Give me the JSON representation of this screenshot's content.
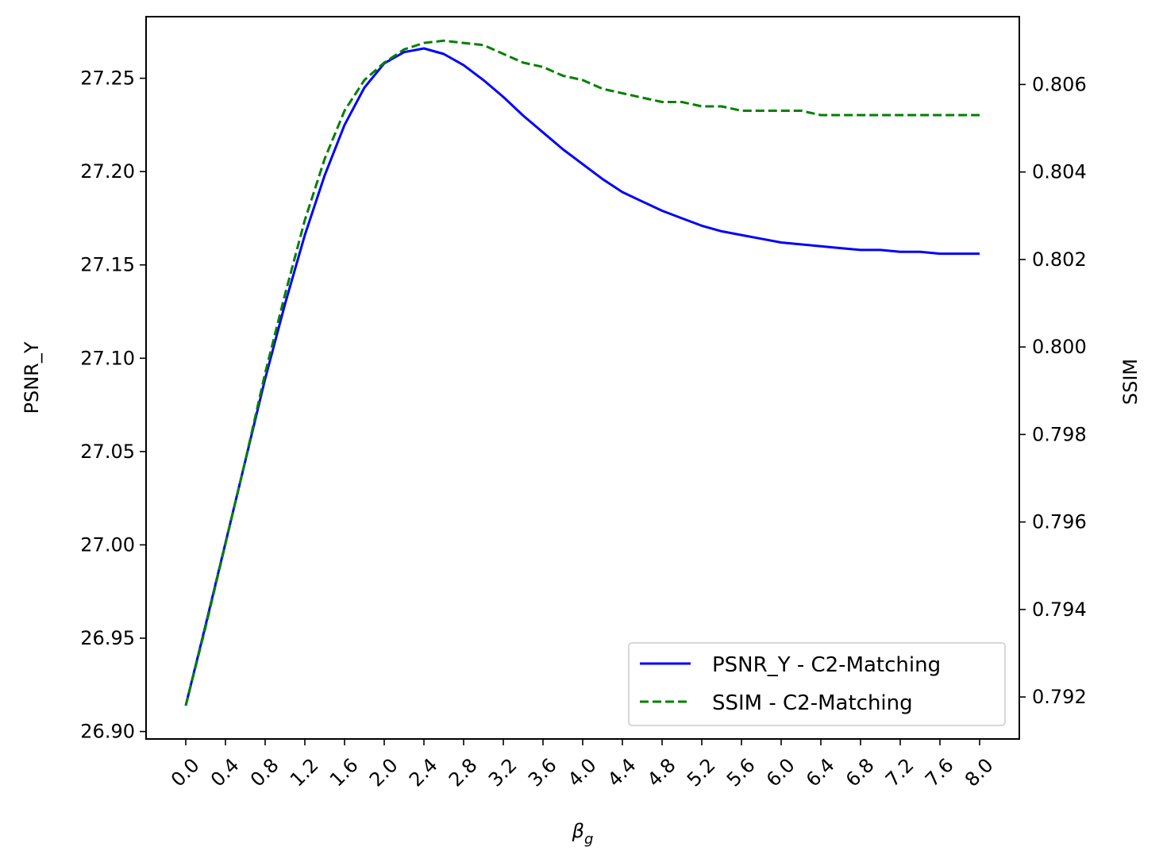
{
  "chart_data": {
    "type": "line",
    "xlabel": "β",
    "xlabel_subscript": "g",
    "ylabel": "PSNR_Y",
    "y2label": "SSIM",
    "xlim": [
      -0.4,
      8.4
    ],
    "ylim": [
      26.896,
      27.283
    ],
    "y2lim": [
      0.79104,
      0.80755
    ],
    "x_ticks": [
      0.0,
      0.4,
      0.8,
      1.2,
      1.6,
      2.0,
      2.4,
      2.8,
      3.2,
      3.6,
      4.0,
      4.4,
      4.8,
      5.2,
      5.6,
      6.0,
      6.4,
      6.8,
      7.2,
      7.6,
      8.0
    ],
    "x_tick_labels": [
      "0.0",
      "0.4",
      "0.8",
      "1.2",
      "1.6",
      "2.0",
      "2.4",
      "2.8",
      "3.2",
      "3.6",
      "4.0",
      "4.4",
      "4.8",
      "5.2",
      "5.6",
      "6.0",
      "6.4",
      "6.8",
      "7.2",
      "7.6",
      "8.0"
    ],
    "y_ticks": [
      26.9,
      26.95,
      27.0,
      27.05,
      27.1,
      27.15,
      27.2,
      27.25
    ],
    "y_tick_labels": [
      "26.90",
      "26.95",
      "27.00",
      "27.05",
      "27.10",
      "27.15",
      "27.20",
      "27.25"
    ],
    "y2_ticks": [
      0.792,
      0.794,
      0.796,
      0.798,
      0.8,
      0.802,
      0.804,
      0.806
    ],
    "y2_tick_labels": [
      "0.792",
      "0.794",
      "0.796",
      "0.798",
      "0.800",
      "0.802",
      "0.804",
      "0.806"
    ],
    "legend_position": "lower-right",
    "grid": false,
    "series": [
      {
        "name": "PSNR_Y - C2-Matching",
        "axis": "left",
        "color": "#0000ff",
        "style": "solid",
        "x": [
          0.0,
          0.2,
          0.4,
          0.6,
          0.8,
          1.0,
          1.2,
          1.4,
          1.6,
          1.8,
          2.0,
          2.2,
          2.4,
          2.6,
          2.8,
          3.0,
          3.2,
          3.4,
          3.6,
          3.8,
          4.0,
          4.2,
          4.4,
          4.6,
          4.8,
          5.0,
          5.2,
          5.4,
          5.6,
          5.8,
          6.0,
          6.2,
          6.4,
          6.6,
          6.8,
          7.0,
          7.2,
          7.4,
          7.6,
          7.8,
          8.0
        ],
        "values": [
          26.914,
          26.957,
          27.001,
          27.045,
          27.089,
          27.129,
          27.166,
          27.198,
          27.225,
          27.245,
          27.258,
          27.264,
          27.266,
          27.263,
          27.257,
          27.249,
          27.24,
          27.23,
          27.221,
          27.212,
          27.204,
          27.196,
          27.189,
          27.184,
          27.179,
          27.175,
          27.171,
          27.168,
          27.166,
          27.164,
          27.162,
          27.161,
          27.16,
          27.159,
          27.158,
          27.158,
          27.157,
          27.157,
          27.156,
          27.156,
          27.156
        ]
      },
      {
        "name": "SSIM - C2-Matching",
        "axis": "right",
        "color": "#008000",
        "style": "dashed",
        "x": [
          0.0,
          0.2,
          0.4,
          0.6,
          0.8,
          1.0,
          1.2,
          1.4,
          1.6,
          1.8,
          2.0,
          2.2,
          2.4,
          2.6,
          2.8,
          3.0,
          3.2,
          3.4,
          3.6,
          3.8,
          4.0,
          4.2,
          4.4,
          4.6,
          4.8,
          5.0,
          5.2,
          5.4,
          5.6,
          5.8,
          6.0,
          6.2,
          6.4,
          6.8,
          7.2,
          7.6,
          8.0
        ],
        "values": [
          0.7918,
          0.7936,
          0.7955,
          0.7974,
          0.7994,
          0.8012,
          0.8029,
          0.8043,
          0.8054,
          0.8061,
          0.8065,
          0.8068,
          0.80695,
          0.807,
          0.80695,
          0.8069,
          0.8067,
          0.8065,
          0.8064,
          0.8062,
          0.8061,
          0.8059,
          0.8058,
          0.8057,
          0.8056,
          0.8056,
          0.8055,
          0.8055,
          0.8054,
          0.8054,
          0.8054,
          0.8054,
          0.8053,
          0.8053,
          0.8053,
          0.8053,
          0.8053
        ]
      }
    ]
  }
}
